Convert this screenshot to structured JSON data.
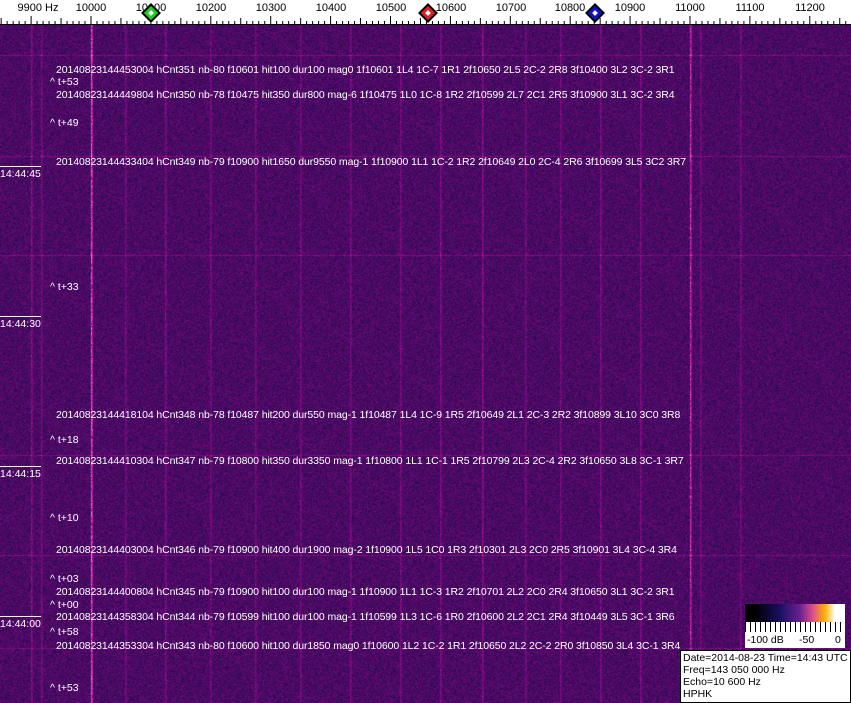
{
  "frequency_axis": {
    "labels": [
      "9900 Hz",
      "10000",
      "10100",
      "10200",
      "10300",
      "10400",
      "10500",
      "10600",
      "10700",
      "10800",
      "10900",
      "11000",
      "11100",
      "11200"
    ],
    "markers": [
      {
        "name": "green",
        "freq_hz": 10100,
        "color": "#22cc22"
      },
      {
        "name": "red",
        "freq_hz": 10563,
        "color": "#dd2222"
      },
      {
        "name": "blue",
        "freq_hz": 10841,
        "color": "#1111cc"
      }
    ]
  },
  "time_labels": [
    "14:44:45",
    "14:44:30",
    "14:44:15",
    "14:44:00"
  ],
  "events": [
    "20140823144453004 hCnt351 nb-80 f10601 hit100 dur100 mag0 1f10601 1L4 1C-7 1R1 2f10650 2L5 2C-2 2R8 3f10400 3L2 3C-2 3R1",
    "20140823144449804 hCnt350 nb-78 f10475 hit350 dur800 mag-6 1f10475 1L0 1C-8 1R2 2f10599 2L7 2C1 2R5 3f10900 3L1 3C-2 3R4",
    "20140823144433404 hCnt349 nb-79 f10900 hit1650 dur9550 mag-1 1f10900 1L1 1C-2 1R2 2f10649 2L0 2C-4 2R6 3f10699 3L5 3C2 3R7",
    "20140823144418104 hCnt348 nb-78 f10487 hit200 dur550 mag-1 1f10487 1L4 1C-9 1R5 2f10649 2L1 2C-3 2R2 3f10899 3L10 3C0 3R8",
    "20140823144410304 hCnt347 nb-79 f10800 hit350 dur3350 mag-1 1f10800 1L1 1C-1 1R5 2f10799 2L3 2C-4 2R2 3f10650 3L8 3C-1 3R7",
    "20140823144403004 hCnt346 nb-79 f10900 hit400 dur1900 mag-2 1f10900 1L5 1C0 1R3 2f10301 2L3 2C0 2R5 3f10901 3L4 3C-4 3R4",
    "20140823144400804 hCnt345 nb-79 f10900 hit100 dur100 mag-1 1f10900 1L1 1C-3 1R2 2f10701 2L2 2C0 2R4 3f10650 3L1 3C-2 3R1",
    "20140823144358304 hCnt344 nb-79 f10599 hit100 dur100 mag-1 1f10599 1L3 1C-6 1R0 2f10600 2L2 2C1 2R4 3f10449 3L5 3C-1 3R6",
    "20140823144353304 hCnt343 nb-80 f10600 hit100 dur1850 mag0 1f10600 1L2 1C-2 1R1 2f10650 2L2 2C-2 2R0 3f10850 3L4 3C-1 3R4"
  ],
  "time_offsets": [
    "^ t+53",
    "^ t+49",
    "^ t+33",
    "^ t+18",
    "^ t+10",
    "^ t+03",
    "^ t+00",
    "^ t+58",
    "^ t+53"
  ],
  "colorbar": {
    "labels": [
      "-100 dB",
      "-50",
      "0"
    ]
  },
  "info": {
    "line1": "Date=2014-08-23 Time=14:43 UTC",
    "line2": "Freq=143 050 000 Hz",
    "line3": "Echo=10 600 Hz",
    "line4": "HPHK"
  }
}
